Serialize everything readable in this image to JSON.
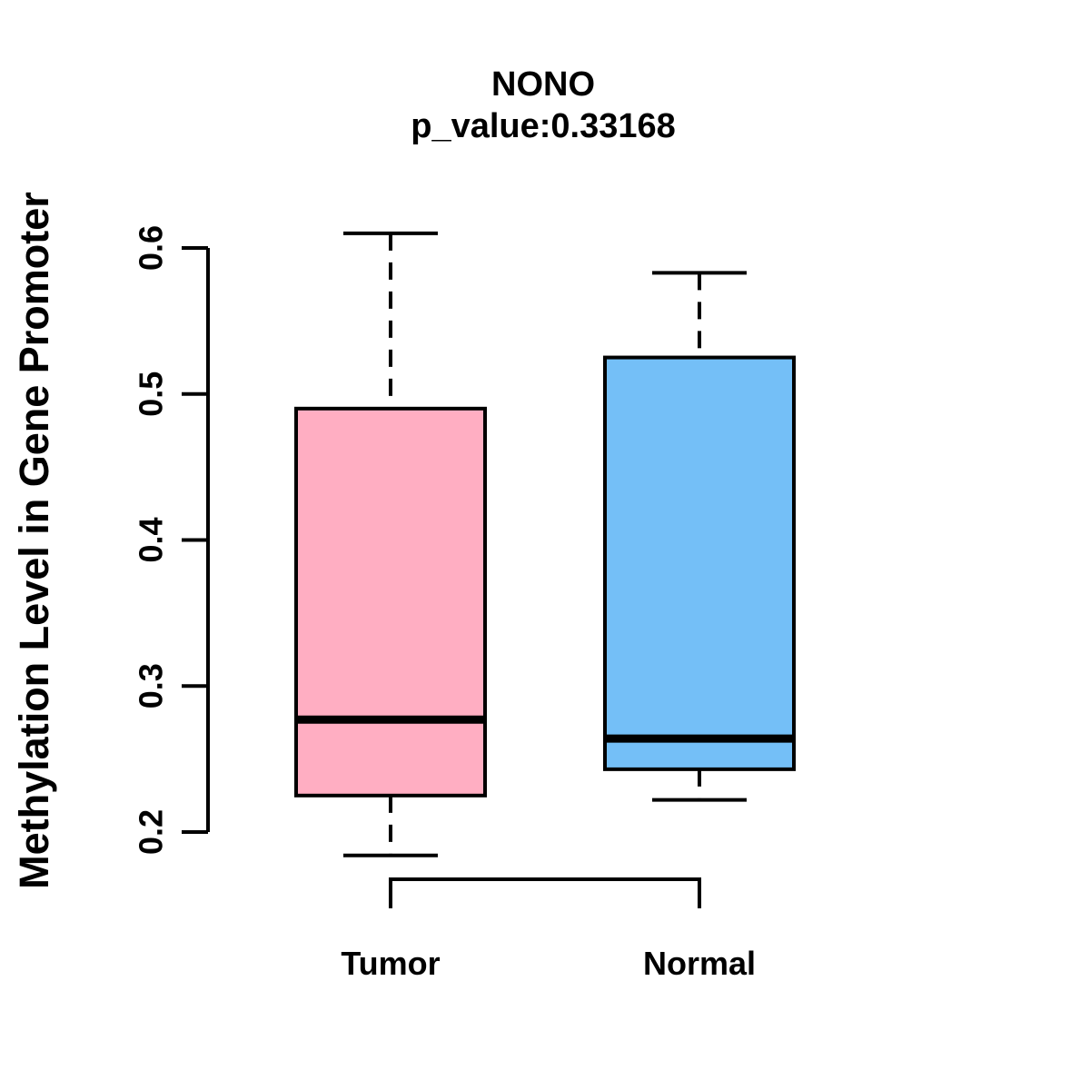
{
  "header": {
    "title": "NONO",
    "subtitle": "p_value:0.33168"
  },
  "chart_data": {
    "type": "boxplot",
    "title": "NONO",
    "subtitle": "p_value:0.33168",
    "ylabel": "Methylation Level in Gene Promoter",
    "xlabel": "",
    "ylim": [
      0.2,
      0.6
    ],
    "y_ticks": [
      0.2,
      0.3,
      0.4,
      0.5,
      0.6
    ],
    "grid": "off",
    "legend": "none",
    "categories": [
      "Tumor",
      "Normal"
    ],
    "series": [
      {
        "name": "Tumor",
        "whisker_low": 0.184,
        "q1": 0.225,
        "median": 0.277,
        "q3": 0.49,
        "whisker_high": 0.61,
        "fill": "#FFAEC2"
      },
      {
        "name": "Normal",
        "whisker_low": 0.222,
        "q1": 0.243,
        "median": 0.264,
        "q3": 0.525,
        "whisker_high": 0.583,
        "fill": "#74BFF7"
      }
    ],
    "annotations": {
      "comparison_bracket": true
    },
    "colors": {
      "stroke": "#000000",
      "background": "#FFFFFF",
      "tumor_fill": "#FFAEC2",
      "normal_fill": "#74BFF7"
    }
  }
}
